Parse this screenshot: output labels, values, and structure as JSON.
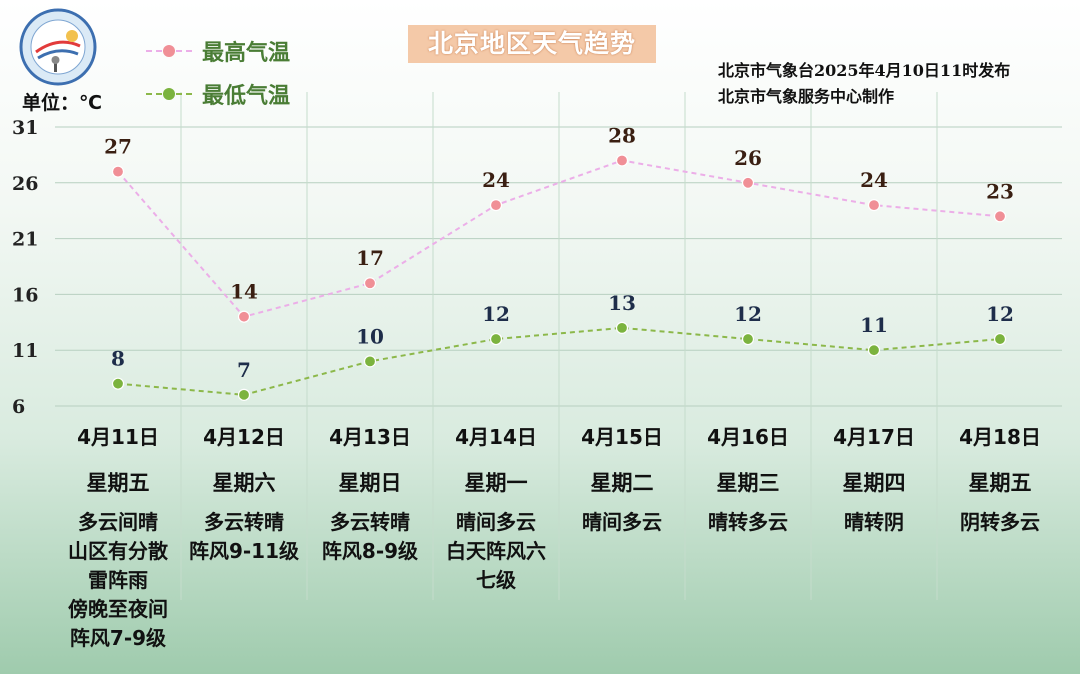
{
  "title": "北京地区天气趋势",
  "source_line1": "北京市气象台2025年4月10日11时发布",
  "source_line2": "北京市气象服务中心制作",
  "unit": "单位：℃",
  "logo": {
    "text": "METEOROLOGICAL SERVICE BEIJING 气象服务",
    "icon": "weather-service-logo-icon"
  },
  "colors": {
    "high": "#f08f96",
    "high_line": "#ecaee8",
    "low": "#7bb33e",
    "low_line": "#8cb84a",
    "label_high": "#3a1f12",
    "label_low": "#1e2d4a"
  },
  "legend": {
    "high_label": "最高气温",
    "low_label": "最低气温"
  },
  "chart_data": {
    "type": "line",
    "categories": [
      "4月11日",
      "4月12日",
      "4月13日",
      "4月14日",
      "4月15日",
      "4月16日",
      "4月17日",
      "4月18日"
    ],
    "series": [
      {
        "name": "最高气温",
        "values": [
          27,
          14,
          17,
          24,
          28,
          26,
          24,
          23
        ]
      },
      {
        "name": "最低气温",
        "values": [
          8,
          7,
          10,
          12,
          13,
          12,
          11,
          12
        ]
      }
    ],
    "yticks": [
      31,
      26,
      21,
      16,
      11,
      6
    ],
    "ylim": [
      6,
      31
    ],
    "xlabel": "",
    "ylabel": "",
    "grid": true,
    "legend_position": "top-left"
  },
  "days": [
    {
      "date": "4月11日",
      "weekday": "星期五",
      "weather": [
        "多云间晴",
        "山区有分散",
        "雷阵雨",
        "傍晚至夜间",
        "阵风7-9级"
      ]
    },
    {
      "date": "4月12日",
      "weekday": "星期六",
      "weather": [
        "多云转晴",
        "阵风9-11级"
      ]
    },
    {
      "date": "4月13日",
      "weekday": "星期日",
      "weather": [
        "多云转晴",
        "阵风8-9级"
      ]
    },
    {
      "date": "4月14日",
      "weekday": "星期一",
      "weather": [
        "晴间多云",
        "白天阵风六",
        "七级"
      ]
    },
    {
      "date": "4月15日",
      "weekday": "星期二",
      "weather": [
        "晴间多云"
      ]
    },
    {
      "date": "4月16日",
      "weekday": "星期三",
      "weather": [
        "晴转多云"
      ]
    },
    {
      "date": "4月17日",
      "weekday": "星期四",
      "weather": [
        "晴转阴"
      ]
    },
    {
      "date": "4月18日",
      "weekday": "星期五",
      "weather": [
        "阴转多云"
      ]
    }
  ]
}
